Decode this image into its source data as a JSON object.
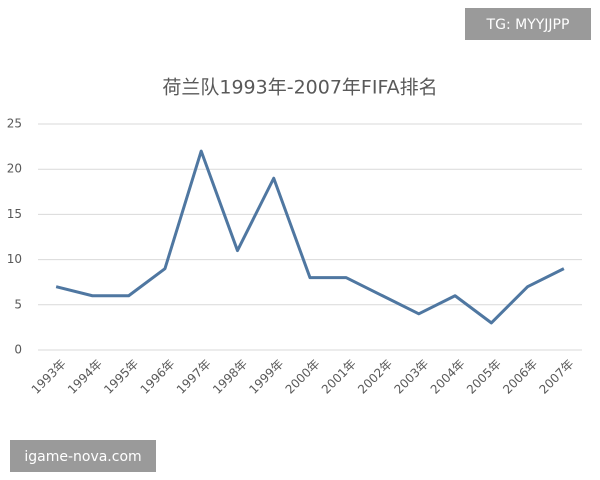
{
  "chart_data": {
    "type": "line",
    "title": "荷兰队1993年-2007年FIFA排名",
    "categories": [
      "1993年",
      "1994年",
      "1995年",
      "1996年",
      "1997年",
      "1998年",
      "1999年",
      "2000年",
      "2001年",
      "2002年",
      "2003年",
      "2004年",
      "2005年",
      "2006年",
      "2007年"
    ],
    "values": [
      7,
      6,
      6,
      9,
      22,
      11,
      19,
      8,
      8,
      6,
      4,
      6,
      3,
      7,
      9
    ],
    "color": "#4f77a1",
    "ylim": [
      0,
      25
    ],
    "yticks": [
      0,
      5,
      10,
      15,
      20,
      25
    ],
    "grid": true
  },
  "watermarks": {
    "top_right": "TG: MYYJJPP",
    "bottom_left": "igame-nova.com"
  }
}
